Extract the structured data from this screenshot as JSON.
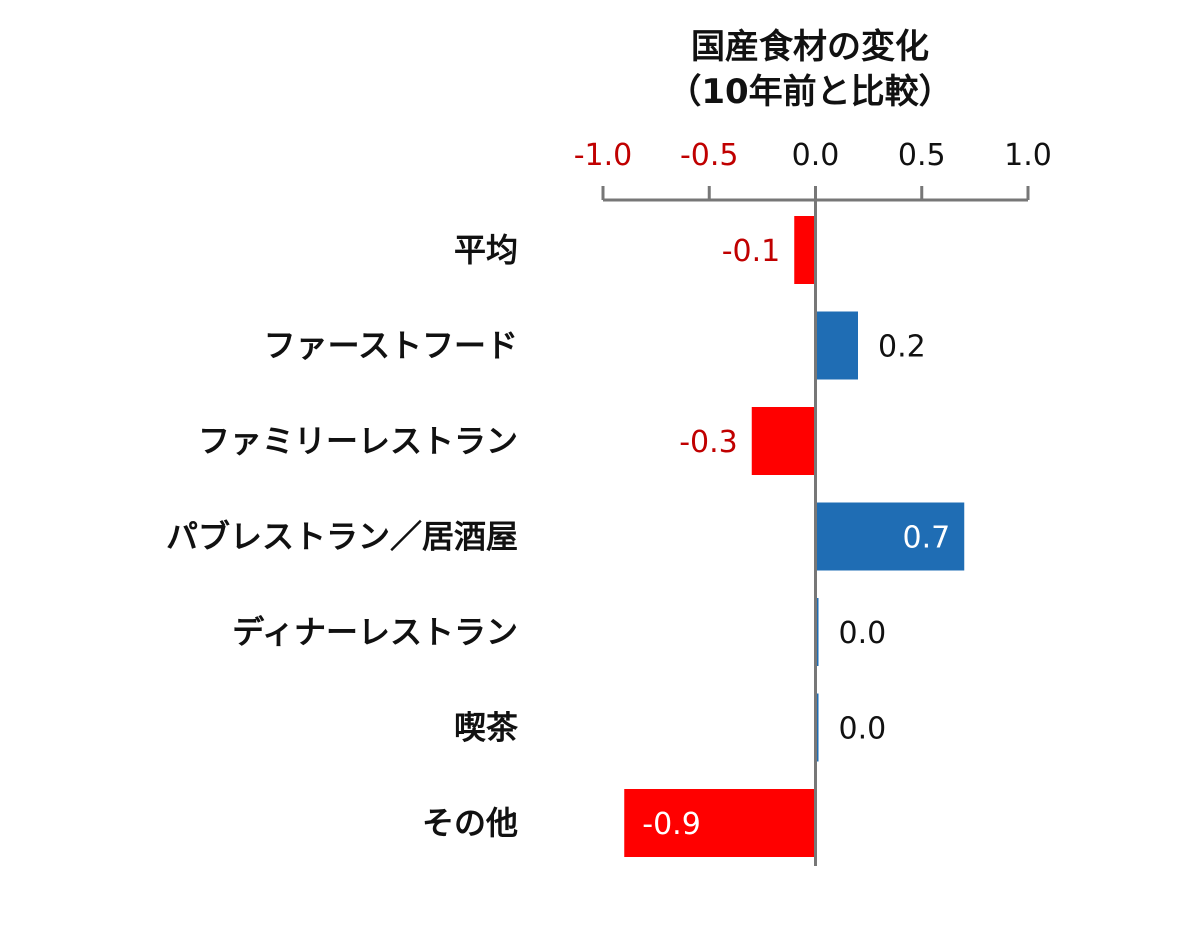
{
  "chart_data": {
    "type": "bar",
    "orientation": "horizontal",
    "title": [
      "国産食材の変化",
      "（10年前と比較）"
    ],
    "xlim": [
      -1.0,
      1.0
    ],
    "xticks": [
      {
        "value": -1.0,
        "label": "-1.0"
      },
      {
        "value": -0.5,
        "label": "-0.5"
      },
      {
        "value": 0.0,
        "label": "0.0"
      },
      {
        "value": 0.5,
        "label": "0.5"
      },
      {
        "value": 1.0,
        "label": "1.0"
      }
    ],
    "grid": false,
    "categories": [
      "平均",
      "ファーストフード",
      "ファミリーレストラン",
      "パブレストラン／居酒屋",
      "ディナーレストラン",
      "喫茶",
      "その他"
    ],
    "values": [
      -0.1,
      0.2,
      -0.3,
      0.7,
      0.0,
      0.0,
      -0.9
    ],
    "value_labels": [
      "-0.1",
      "0.2",
      "-0.3",
      "0.7",
      "0.0",
      "0.0",
      "-0.9"
    ],
    "colors": {
      "positive": "#1f6db4",
      "negative": "#ff0000",
      "negative_text": "#c00000",
      "text": "#111111",
      "axis": "#777777"
    }
  }
}
